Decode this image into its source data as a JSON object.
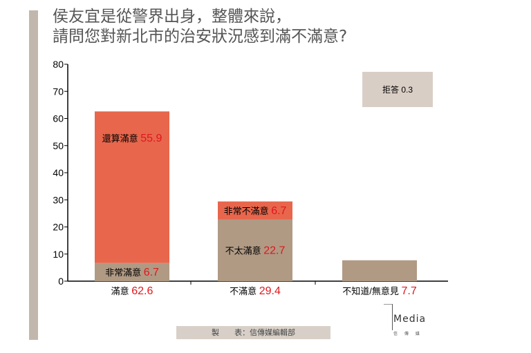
{
  "title": {
    "line1": "侯友宜是從警界出身，整體來說，",
    "line2": "請問您對新北市的治安狀況感到滿不滿意?"
  },
  "footer": "製　　表：信傳媒編輯部",
  "logo": {
    "text": "Media",
    "sub": "信 傳 媒"
  },
  "colors": {
    "orange": "#e8664c",
    "brown": "#b09a84",
    "red": "#e0161b",
    "refuse_box": "#d9cec5"
  },
  "chart_data": {
    "type": "bar",
    "stacked": true,
    "ylim": [
      0,
      80
    ],
    "yticks": [
      0,
      10,
      20,
      30,
      40,
      50,
      60,
      70,
      80
    ],
    "categories": [
      {
        "label": "滿意",
        "total": "62.6",
        "segments": [
          {
            "name": "非常滿意",
            "value": 6.7,
            "color": "brown"
          },
          {
            "name": "還算滿意",
            "value": 55.9,
            "color": "orange"
          }
        ]
      },
      {
        "label": "不滿意",
        "total": "29.4",
        "segments": [
          {
            "name": "不太滿意",
            "value": 22.7,
            "color": "brown"
          },
          {
            "name": "非常不滿意",
            "value": 6.7,
            "color": "orange"
          }
        ]
      },
      {
        "label": "不知道/無意見",
        "total": "7.7",
        "segments": [
          {
            "name": "",
            "value": 7.7,
            "color": "brown"
          }
        ]
      }
    ],
    "annotation": {
      "label": "拒答",
      "value": "0.3"
    }
  }
}
